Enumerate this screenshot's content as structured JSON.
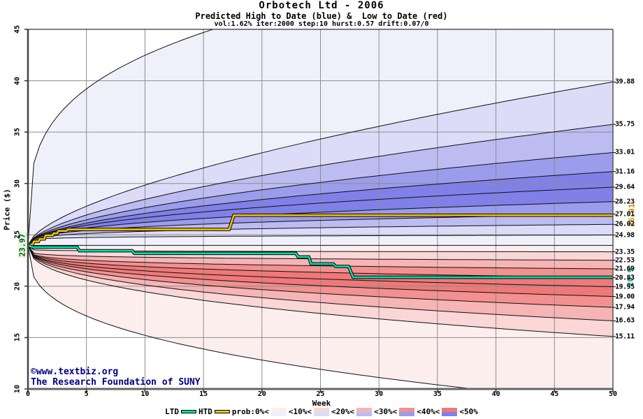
{
  "header": {
    "title": "Orbotech Ltd - 2006",
    "subtitle": "Predicted High to Date (blue) &  Low to Date (red)",
    "params": "vol:1.62% iter:2000 step:10 hurst:0.57 drift:0.07/0"
  },
  "watermark": {
    "line1": "©www.textbiz.org",
    "line2": "The Research Foundation of SUNY"
  },
  "colors": {
    "blue_bands": [
      "#8080e8",
      "#9c9cec",
      "#bcbcf2",
      "#dcdcf8",
      "#f0f0fb"
    ],
    "red_bands": [
      "#f07878",
      "#f39090",
      "#f7b4b4",
      "#fad6d6",
      "#fdeeee"
    ],
    "htd": "#f5c400",
    "ltd": "#00e0a8",
    "htd_label": "#c88a00",
    "ltd_label": "#009e70",
    "grid": "#8c8c8c",
    "contour": "#101010",
    "start_label_fg": "#005a00",
    "start_label_bg": "#e4f6e4",
    "watermark": "#000080"
  },
  "chart_data": {
    "type": "fan-contour",
    "title": "Orbotech Ltd - 2006",
    "xlabel": "Week",
    "ylabel": "Price ($)",
    "xlim": [
      0,
      50
    ],
    "ylim": [
      10,
      45
    ],
    "x_ticks": [
      0,
      5,
      10,
      15,
      20,
      25,
      30,
      35,
      40,
      45,
      50
    ],
    "y_ticks": [
      10,
      15,
      20,
      25,
      30,
      35,
      40,
      45
    ],
    "grid": true,
    "start_price": 23.97,
    "start_label": "23.97",
    "high_contours": [
      {
        "end": 24.98,
        "alpha": 0.12
      },
      {
        "end": 26.02,
        "alpha": 0.25
      },
      {
        "end": 27.01,
        "alpha": 0.32
      },
      {
        "end": 28.23,
        "alpha": 0.4
      },
      {
        "end": 29.64,
        "alpha": 0.46
      },
      {
        "end": 31.16,
        "alpha": 0.52
      },
      {
        "end": 33.01,
        "alpha": 0.56
      },
      {
        "end": 35.75,
        "alpha": 0.6
      },
      {
        "end": 39.88,
        "alpha": 0.62
      }
    ],
    "high_envelope": {
      "end": 53.0,
      "alpha": 0.28
    },
    "low_contours": [
      {
        "end": 23.35,
        "alpha": 0.08
      },
      {
        "end": 22.53,
        "alpha": 0.14
      },
      {
        "end": 21.69,
        "alpha": 0.2
      },
      {
        "end": 20.83,
        "alpha": 0.26
      },
      {
        "end": 19.95,
        "alpha": 0.3
      },
      {
        "end": 19.0,
        "alpha": 0.34
      },
      {
        "end": 17.94,
        "alpha": 0.37
      },
      {
        "end": 16.63,
        "alpha": 0.4
      },
      {
        "end": 15.11,
        "alpha": 0.42
      }
    ],
    "low_envelope": {
      "end": 8.6,
      "alpha": 0.35
    },
    "band_color_order": [
      4,
      3,
      2,
      1,
      0,
      0,
      1,
      2,
      3,
      4
    ],
    "htd_line": {
      "name": "HTD",
      "final": 26.91,
      "final_label": "26.91",
      "points": [
        [
          0,
          23.97
        ],
        [
          0.4,
          24.1
        ],
        [
          0.5,
          24.35
        ],
        [
          0.9,
          24.35
        ],
        [
          1.0,
          24.6
        ],
        [
          1.4,
          24.6
        ],
        [
          1.5,
          24.95
        ],
        [
          2.1,
          24.95
        ],
        [
          2.2,
          25.15
        ],
        [
          2.5,
          25.15
        ],
        [
          2.6,
          25.38
        ],
        [
          3.3,
          25.38
        ],
        [
          3.4,
          25.52
        ],
        [
          17.2,
          25.52
        ],
        [
          17.6,
          26.91
        ],
        [
          50,
          26.91
        ]
      ]
    },
    "ltd_line": {
      "name": "LTD",
      "final": 20.87,
      "final_label": "20.9",
      "points": [
        [
          0,
          23.97
        ],
        [
          0.4,
          23.8
        ],
        [
          4.2,
          23.8
        ],
        [
          4.4,
          23.45
        ],
        [
          8.9,
          23.45
        ],
        [
          9.1,
          23.2
        ],
        [
          22.9,
          23.2
        ],
        [
          23.1,
          22.85
        ],
        [
          24.0,
          22.85
        ],
        [
          24.2,
          22.17
        ],
        [
          26.1,
          22.17
        ],
        [
          26.3,
          21.93
        ],
        [
          27.4,
          21.93
        ],
        [
          27.8,
          20.87
        ],
        [
          50,
          20.87
        ]
      ]
    }
  },
  "legend": {
    "items": [
      {
        "type": "label",
        "label": "LTD"
      },
      {
        "type": "line",
        "color_key": "ltd",
        "name": "ltd-line-swatch"
      },
      {
        "type": "label",
        "label": "HTD"
      },
      {
        "type": "line",
        "color_key": "htd",
        "name": "htd-line-swatch"
      },
      {
        "type": "label",
        "label": "prob:0%<"
      },
      {
        "type": "swatch",
        "level": 4,
        "name": "swatch-prob-0-10"
      },
      {
        "type": "label",
        "label": "<10%<"
      },
      {
        "type": "swatch",
        "level": 3,
        "name": "swatch-prob-10-20"
      },
      {
        "type": "label",
        "label": "<20%<"
      },
      {
        "type": "swatch",
        "level": 2,
        "name": "swatch-prob-20-30"
      },
      {
        "type": "label",
        "label": "<30%<"
      },
      {
        "type": "swatch",
        "level": 1,
        "name": "swatch-prob-30-40"
      },
      {
        "type": "label",
        "label": "<40%<"
      },
      {
        "type": "swatch",
        "level": 0,
        "name": "swatch-prob-40-50"
      },
      {
        "type": "label",
        "label": "<50%"
      }
    ]
  }
}
